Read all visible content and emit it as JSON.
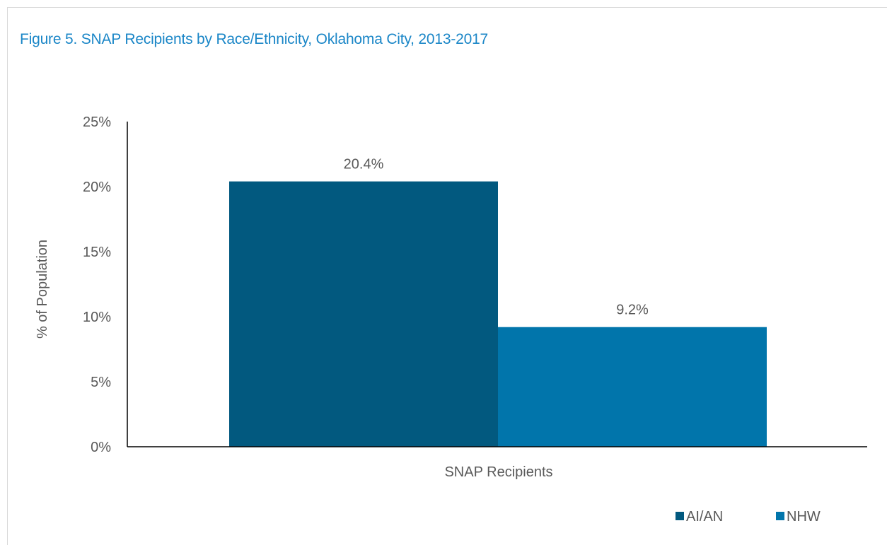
{
  "title": "Figure 5. SNAP Recipients by Race/Ethnicity, Oklahoma City, 2013-2017",
  "chart_data": {
    "type": "bar",
    "categories": [
      "SNAP Recipients"
    ],
    "series": [
      {
        "name": "AI/AN",
        "values": [
          20.4
        ],
        "color": "#02597f",
        "label": "20.4%"
      },
      {
        "name": "NHW",
        "values": [
          9.2
        ],
        "color": "#0175ab",
        "label": "9.2%"
      }
    ],
    "ylabel": "% of Population",
    "xlabel": "",
    "ylim": [
      0,
      25
    ],
    "yticks": [
      0,
      5,
      10,
      15,
      20,
      25
    ],
    "ytick_labels": [
      "0%",
      "5%",
      "10%",
      "15%",
      "20%",
      "25%"
    ],
    "grid": false,
    "legend_position": "bottom-right"
  }
}
